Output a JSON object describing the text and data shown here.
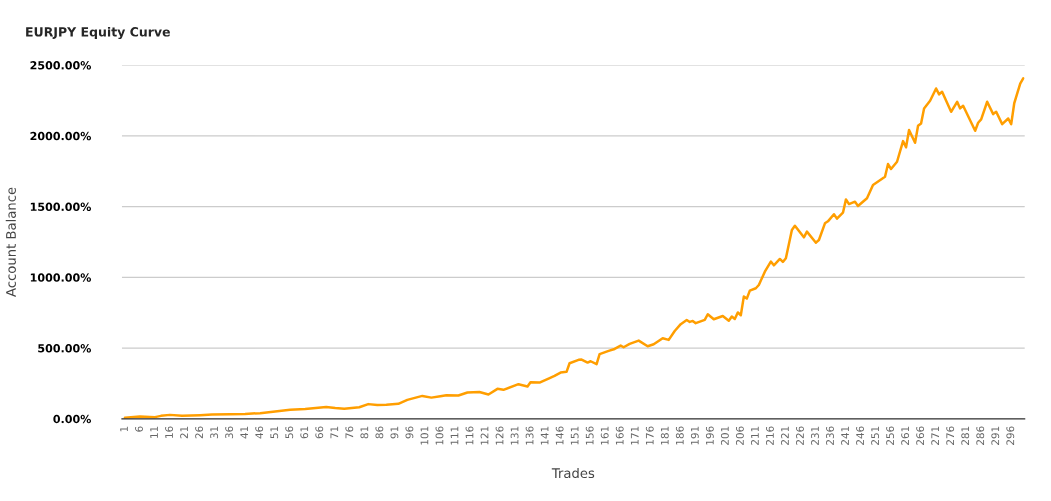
{
  "chart_data": {
    "type": "line",
    "title": "EURJPY Equity Curve",
    "xlabel": "Trades",
    "ylabel": "Account Balance",
    "x": [
      1,
      6,
      11,
      13,
      16,
      20,
      26,
      30,
      36,
      41,
      46,
      51,
      56,
      61,
      68,
      71,
      74,
      79,
      82,
      85,
      88,
      92,
      95,
      100,
      103,
      106,
      108,
      112,
      115,
      119,
      122,
      125,
      127,
      132,
      135,
      136,
      139,
      142,
      144,
      146,
      148,
      149,
      152,
      153,
      155,
      156,
      158,
      159,
      162,
      164,
      166,
      167,
      169,
      172,
      175,
      177,
      180,
      182,
      184,
      186,
      188,
      189,
      190,
      191,
      194,
      195,
      197,
      200,
      202,
      203,
      204,
      205,
      206,
      207,
      208,
      209,
      211,
      212,
      214,
      216,
      217,
      219,
      220,
      221,
      223,
      224,
      227,
      228,
      231,
      232,
      234,
      235,
      237,
      238,
      240,
      241,
      242,
      244,
      245,
      248,
      250,
      254,
      255,
      256,
      258,
      260,
      261,
      262,
      264,
      265,
      266,
      267,
      269,
      271,
      272,
      273,
      276,
      278,
      279,
      280,
      284,
      285,
      286,
      288,
      290,
      291,
      293,
      295,
      296,
      297,
      299,
      300
    ],
    "series": [
      {
        "color": "#ff9e00",
        "values": [
          7,
          16,
          12,
          21,
          28,
          22,
          26,
          30,
          33,
          35,
          40,
          52,
          64,
          70,
          83,
          76,
          72,
          82,
          104,
          97,
          99,
          106,
          134,
          162,
          150,
          160,
          167,
          165,
          186,
          190,
          172,
          212,
          205,
          245,
          228,
          259,
          256,
          285,
          304,
          327,
          332,
          393,
          417,
          419,
          398,
          407,
          386,
          457,
          480,
          494,
          518,
          506,
          530,
          553,
          513,
          527,
          570,
          558,
          621,
          669,
          699,
          685,
          692,
          676,
          699,
          739,
          704,
          727,
          694,
          723,
          706,
          752,
          732,
          864,
          850,
          906,
          923,
          946,
          1040,
          1111,
          1085,
          1130,
          1109,
          1135,
          1335,
          1365,
          1283,
          1323,
          1245,
          1264,
          1382,
          1396,
          1446,
          1415,
          1457,
          1551,
          1518,
          1535,
          1504,
          1559,
          1653,
          1711,
          1801,
          1766,
          1817,
          1963,
          1919,
          2041,
          1951,
          2071,
          2088,
          2194,
          2248,
          2335,
          2293,
          2312,
          2170,
          2241,
          2194,
          2213,
          2036,
          2093,
          2117,
          2241,
          2154,
          2170,
          2083,
          2123,
          2083,
          2229,
          2370,
          2406
        ]
      }
    ],
    "xlim": [
      0,
      300.5
    ],
    "xticks": [
      1,
      6,
      11,
      16,
      21,
      26,
      31,
      36,
      41,
      46,
      51,
      56,
      61,
      66,
      71,
      76,
      81,
      86,
      91,
      96,
      101,
      106,
      111,
      116,
      121,
      126,
      131,
      136,
      141,
      146,
      151,
      156,
      161,
      166,
      171,
      176,
      181,
      186,
      191,
      196,
      201,
      206,
      211,
      216,
      221,
      226,
      231,
      236,
      241,
      246,
      251,
      256,
      261,
      266,
      271,
      276,
      281,
      286,
      291,
      296
    ],
    "ylim": [
      0,
      2500
    ],
    "yticks": [
      {
        "value": 0,
        "label": "0.00%"
      },
      {
        "value": 500,
        "label": "500.00%"
      },
      {
        "value": 1000,
        "label": "1000.00%"
      },
      {
        "value": 1500,
        "label": "1500.00%"
      },
      {
        "value": 2000,
        "label": "2000.00%"
      },
      {
        "value": 2500,
        "label": "2500.00%"
      }
    ],
    "grid": "y",
    "marker": "none",
    "line_style": "solid"
  }
}
